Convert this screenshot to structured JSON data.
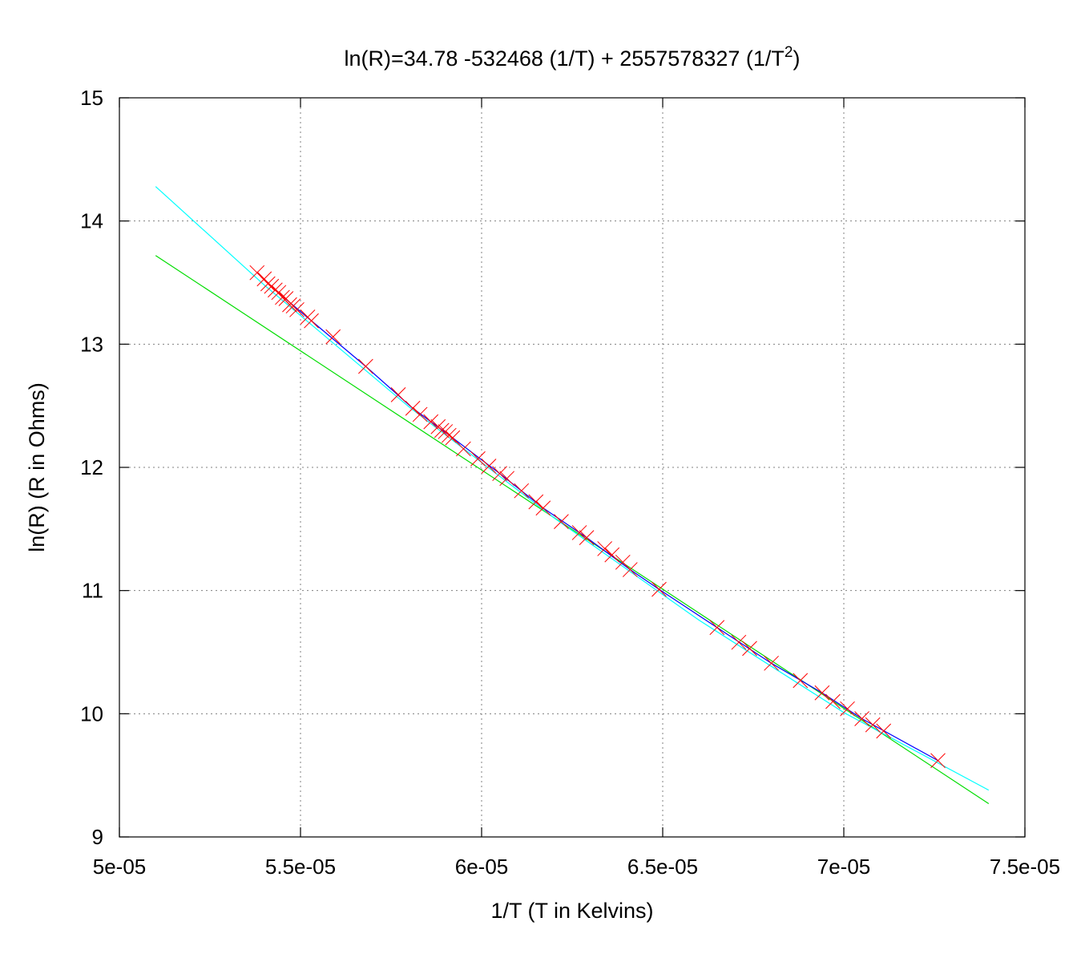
{
  "chart_data": {
    "type": "scatter",
    "title": {
      "main": "ln(R)=34.78 -532468 (1/T) + 2557578327 (1/T",
      "superscript": "2",
      "closing": ")"
    },
    "xlabel": "1/T (T in Kelvins)",
    "ylabel": "ln(R) (R in Ohms)",
    "xlim": [
      5e-05,
      7.5e-05
    ],
    "ylim": [
      9,
      15
    ],
    "xticks": [
      5e-05,
      5.5e-05,
      6e-05,
      6.5e-05,
      7e-05,
      7.5e-05
    ],
    "xtick_labels": [
      "5e-05",
      "5.5e-05",
      "6e-05",
      "6.5e-05",
      "7e-05",
      "7.5e-05"
    ],
    "yticks": [
      9,
      10,
      11,
      12,
      13,
      14,
      15
    ],
    "ytick_labels": [
      "9",
      "10",
      "11",
      "12",
      "13",
      "14",
      "15"
    ],
    "grid": true,
    "legend": "none",
    "colors": {
      "points": "#ff0000",
      "linear_fit": "#00dd00",
      "quadratic_fit": "#00ffff",
      "data_line": "#0000ff"
    },
    "series": [
      {
        "kind": "points",
        "marker": "x",
        "x": [
          5.38e-05,
          5.4e-05,
          5.41e-05,
          5.42e-05,
          5.43e-05,
          5.44e-05,
          5.45e-05,
          5.46e-05,
          5.47e-05,
          5.48e-05,
          5.49e-05,
          5.52e-05,
          5.53e-05,
          5.59e-05,
          5.68e-05,
          5.77e-05,
          5.81e-05,
          5.83e-05,
          5.86e-05,
          5.88e-05,
          5.89e-05,
          5.9e-05,
          5.91e-05,
          5.92e-05,
          5.95e-05,
          5.99e-05,
          6.02e-05,
          6.05e-05,
          6.07e-05,
          6.11e-05,
          6.15e-05,
          6.17e-05,
          6.22e-05,
          6.27e-05,
          6.29e-05,
          6.34e-05,
          6.36e-05,
          6.39e-05,
          6.41e-05,
          6.49e-05,
          6.65e-05,
          6.71e-05,
          6.74e-05,
          6.8e-05,
          6.88e-05,
          6.94e-05,
          6.97e-05,
          7.01e-05,
          7.05e-05,
          7.08e-05,
          7.11e-05,
          7.26e-05
        ],
        "y": [
          13.58,
          13.53,
          13.49,
          13.47,
          13.44,
          13.42,
          13.38,
          13.37,
          13.32,
          13.31,
          13.28,
          13.22,
          13.19,
          13.06,
          12.82,
          12.59,
          12.48,
          12.43,
          12.37,
          12.33,
          12.3,
          12.29,
          12.26,
          12.24,
          12.15,
          12.07,
          12.01,
          11.95,
          11.91,
          11.81,
          11.72,
          11.67,
          11.56,
          11.47,
          11.43,
          11.34,
          11.29,
          11.23,
          11.17,
          11.01,
          10.7,
          10.58,
          10.53,
          10.41,
          10.27,
          10.17,
          10.1,
          10.04,
          9.96,
          9.91,
          9.86,
          9.62
        ]
      },
      {
        "kind": "line",
        "fit": "linear",
        "x": [
          5.1e-05,
          7.4e-05
        ],
        "y": [
          13.72,
          9.27
        ]
      },
      {
        "kind": "line",
        "fit": "quadratic",
        "x": [
          5.1e-05,
          5.4e-05,
          5.8e-05,
          6.2e-05,
          6.6e-05,
          7e-05,
          7.4e-05
        ],
        "y": [
          14.28,
          13.48,
          12.49,
          11.59,
          10.76,
          10.01,
          9.38
        ]
      },
      {
        "kind": "line",
        "fit": "data",
        "x": [
          5.38e-05,
          5.45e-05,
          5.53e-05,
          5.68e-05,
          5.81e-05,
          5.92e-05,
          6.05e-05,
          6.17e-05,
          6.29e-05,
          6.41e-05,
          6.49e-05,
          6.65e-05,
          6.8e-05,
          6.94e-05,
          7.05e-05,
          7.26e-05
        ],
        "y": [
          13.58,
          13.39,
          13.19,
          12.82,
          12.48,
          12.24,
          11.95,
          11.67,
          11.43,
          11.17,
          11.01,
          10.7,
          10.41,
          10.17,
          9.96,
          9.62
        ]
      }
    ]
  }
}
